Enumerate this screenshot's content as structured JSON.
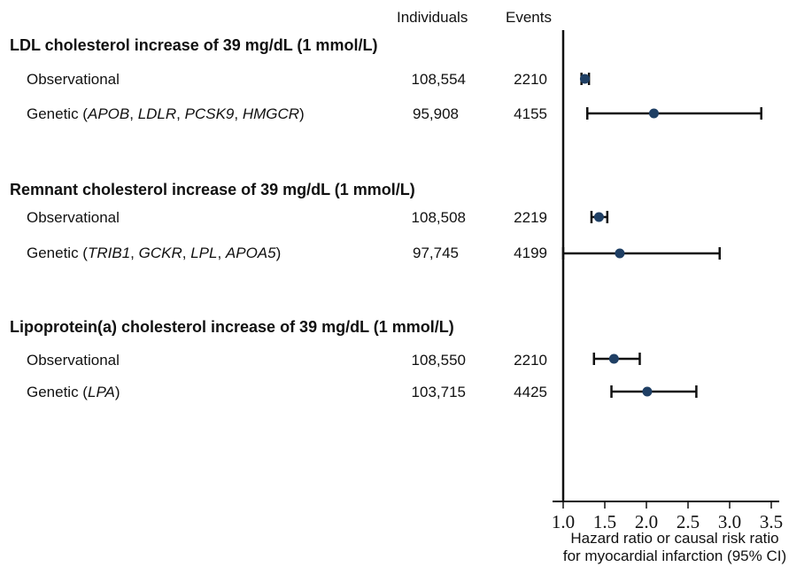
{
  "columns": {
    "individuals": "Individuals",
    "events": "Events"
  },
  "sections": [
    {
      "title": "LDL cholesterol increase of 39 mg/dL (1 mmol/L)",
      "rows": [
        {
          "label": "Observational",
          "individuals": "108,554",
          "events": "2210"
        },
        {
          "label": "Genetic (APOB, LDLR, PCSK9, HMGCR)",
          "individuals": "95,908",
          "events": "4155"
        }
      ]
    },
    {
      "title": "Remnant cholesterol increase of 39 mg/dL (1 mmol/L)",
      "rows": [
        {
          "label": "Observational",
          "individuals": "108,508",
          "events": "2219"
        },
        {
          "label": "Genetic (TRIB1, GCKR, LPL, APOA5)",
          "individuals": "97,745",
          "events": "4199"
        }
      ]
    },
    {
      "title": "Lipoprotein(a) cholesterol increase of 39 mg/dL (1 mmol/L)",
      "rows": [
        {
          "label": "Observational",
          "individuals": "108,550",
          "events": "2210"
        },
        {
          "label": "Genetic (LPA)",
          "individuals": "103,715",
          "events": "4425"
        }
      ]
    }
  ],
  "chart_data": {
    "type": "forest",
    "xlabel_line1": "Hazard ratio or causal risk ratio",
    "xlabel_line2": "for myocardial infarction (95% CI)",
    "xlim": [
      1.0,
      3.5
    ],
    "xticks": [
      "1.0",
      "1.5",
      "2.0",
      "2.5",
      "3.0",
      "3.5"
    ],
    "series": [
      {
        "name": "LDL observational",
        "estimate": 1.26,
        "lower": 1.22,
        "upper": 1.31
      },
      {
        "name": "LDL genetic",
        "estimate": 2.09,
        "lower": 1.29,
        "upper": 3.38
      },
      {
        "name": "Remnant observational",
        "estimate": 1.43,
        "lower": 1.34,
        "upper": 1.53
      },
      {
        "name": "Remnant genetic",
        "estimate": 1.68,
        "lower": 1.0,
        "upper": 2.88
      },
      {
        "name": "Lp(a) observational",
        "estimate": 1.61,
        "lower": 1.37,
        "upper": 1.92
      },
      {
        "name": "Lp(a) genetic",
        "estimate": 2.01,
        "lower": 1.58,
        "upper": 2.6
      }
    ],
    "marker_color": "#1f3f64",
    "line_color": "#111111"
  }
}
